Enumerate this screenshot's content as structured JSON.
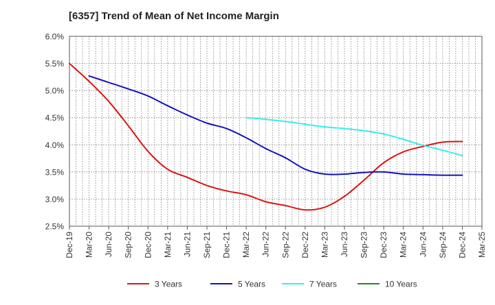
{
  "chart_data": {
    "type": "line",
    "title": "[6357]  Trend of Mean of Net Income Margin",
    "xlabel": "",
    "ylabel": "",
    "x": [
      "Dec-19",
      "Mar-20",
      "Jun-20",
      "Sep-20",
      "Dec-20",
      "Mar-21",
      "Jun-21",
      "Sep-21",
      "Dec-21",
      "Mar-22",
      "Jun-22",
      "Sep-22",
      "Dec-22",
      "Mar-23",
      "Jun-23",
      "Sep-23",
      "Dec-23",
      "Mar-24",
      "Jun-24",
      "Sep-24",
      "Dec-24",
      "Mar-25"
    ],
    "y_ticks": [
      "2.5%",
      "3.0%",
      "3.5%",
      "4.0%",
      "4.5%",
      "5.0%",
      "5.5%",
      "6.0%"
    ],
    "ylim": [
      2.5,
      6.0
    ],
    "grid": true,
    "legend_position": "bottom",
    "series": [
      {
        "name": "3 Years",
        "color": "#dd1111",
        "values": [
          5.5,
          5.17,
          4.8,
          4.35,
          3.88,
          3.55,
          3.4,
          3.25,
          3.15,
          3.08,
          2.95,
          2.88,
          2.8,
          2.85,
          3.05,
          3.35,
          3.67,
          3.87,
          3.97,
          4.05,
          4.06,
          null
        ]
      },
      {
        "name": "5 Years",
        "color": "#1111bb",
        "values": [
          null,
          5.27,
          5.15,
          5.03,
          4.9,
          4.72,
          4.55,
          4.4,
          4.3,
          4.13,
          3.93,
          3.76,
          3.55,
          3.46,
          3.46,
          3.49,
          3.5,
          3.46,
          3.45,
          3.44,
          3.44,
          null
        ]
      },
      {
        "name": "7 Years",
        "color": "#33eeee",
        "values": [
          null,
          null,
          null,
          null,
          null,
          null,
          null,
          null,
          null,
          4.5,
          4.47,
          4.43,
          4.38,
          4.33,
          4.3,
          4.26,
          4.2,
          4.1,
          3.99,
          3.9,
          3.8,
          null
        ]
      },
      {
        "name": "10 Years",
        "color": "#228822",
        "values": [
          null,
          null,
          null,
          null,
          null,
          null,
          null,
          null,
          null,
          null,
          null,
          null,
          null,
          null,
          null,
          null,
          null,
          null,
          null,
          null,
          null,
          null
        ]
      }
    ]
  }
}
